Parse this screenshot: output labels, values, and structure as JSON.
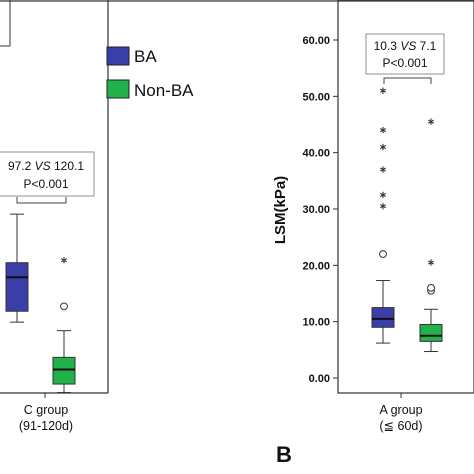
{
  "legend": {
    "items": [
      {
        "label": "BA",
        "color": "#3a3fa8"
      },
      {
        "label": "Non-BA",
        "color": "#22b24c"
      }
    ]
  },
  "panel_label": "B",
  "chart_data": [
    {
      "type": "box",
      "category": "C group",
      "category_sub": "(91-120d)",
      "annotation": {
        "line1": "97.2 VS 120.1",
        "line1_left": "97.2 ",
        "line1_vs": "VS",
        "line1_right": " 120.1",
        "line2": "P<0.001"
      },
      "series": [
        {
          "name": "BA",
          "color": "#3a3fa8",
          "whisker_low": 38.5,
          "q1": 43,
          "median": 57,
          "q3": 63,
          "whisker_high": 83,
          "outliers": []
        },
        {
          "name": "Non-BA",
          "color": "#22b24c",
          "whisker_low": 9.5,
          "q1": 13,
          "median": 19,
          "q3": 24,
          "whisker_high": 35,
          "outliers": [
            {
              "value": 45,
              "marker": "circle"
            },
            {
              "value": 64,
              "marker": "star"
            }
          ]
        }
      ]
    },
    {
      "type": "box",
      "category": "A group",
      "category_sub": "(≦ 60d)",
      "ylabel": "LSM(kPa)",
      "ylim": [
        0,
        60
      ],
      "yticks": [
        "0.00",
        "10.00",
        "20.00",
        "30.00",
        "40.00",
        "50.00",
        "60.00"
      ],
      "annotation": {
        "line1": "10.3 VS 7.1",
        "line1_left": "10.3 ",
        "line1_vs": "VS",
        "line1_right": " 7.1",
        "line2": "P<0.001"
      },
      "series": [
        {
          "name": "BA",
          "color": "#3a3fa8",
          "whisker_low": 6.2,
          "q1": 9,
          "median": 10.5,
          "q3": 12.5,
          "whisker_high": 17.3,
          "outliers": [
            {
              "value": 22,
              "marker": "circle"
            },
            {
              "value": 30.5,
              "marker": "star"
            },
            {
              "value": 32.5,
              "marker": "star"
            },
            {
              "value": 37,
              "marker": "star"
            },
            {
              "value": 41,
              "marker": "star"
            },
            {
              "value": 44,
              "marker": "star"
            },
            {
              "value": 51,
              "marker": "star"
            }
          ]
        },
        {
          "name": "Non-BA",
          "color": "#22b24c",
          "whisker_low": 4.7,
          "q1": 6.5,
          "median": 7.5,
          "q3": 9.5,
          "whisker_high": 12.2,
          "outliers": [
            {
              "value": 15.5,
              "marker": "circle"
            },
            {
              "value": 16,
              "marker": "circle"
            },
            {
              "value": 20.5,
              "marker": "star"
            },
            {
              "value": 45.5,
              "marker": "star"
            }
          ]
        }
      ]
    }
  ]
}
